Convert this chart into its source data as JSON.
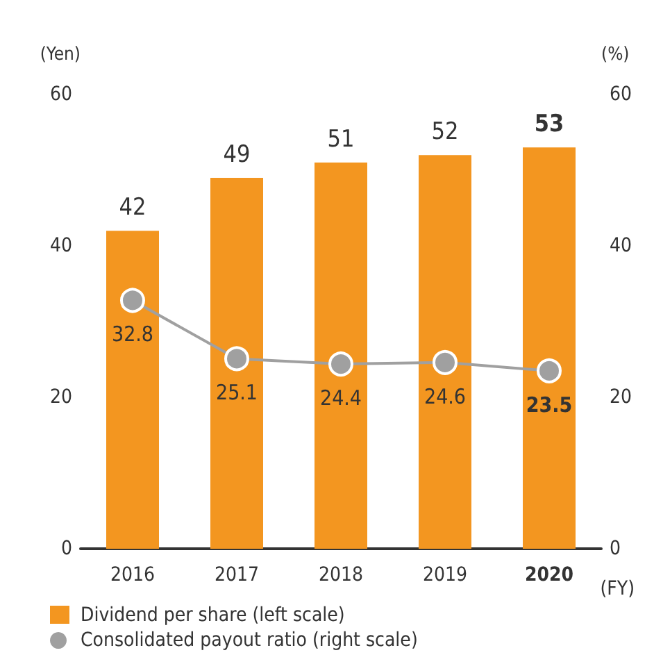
{
  "chart_data": {
    "type": "bar",
    "ylabel": "(Yen)",
    "y2label": "(%)",
    "xlabel": "(FY)",
    "categories": [
      "2016",
      "2017",
      "2018",
      "2019",
      "2020"
    ],
    "series": [
      {
        "name": "Dividend per share (left scale)",
        "color": "#f39620",
        "values": [
          42,
          49,
          51,
          52,
          53
        ]
      },
      {
        "name": "Consolidated payout ratio (right scale)",
        "type": "line",
        "axis": "y2",
        "color": "#a0a0a0",
        "values": [
          32.8,
          25.1,
          24.4,
          24.6,
          23.5
        ]
      }
    ],
    "ylim": [
      0,
      60
    ],
    "yticks": [
      0,
      20,
      40,
      60
    ],
    "y2lim": [
      0,
      60
    ],
    "y2ticks": [
      0,
      20,
      40,
      60
    ],
    "data_labels": true,
    "legend": "bottom left",
    "grid": false,
    "marker": "circle",
    "line_style": "solid"
  }
}
